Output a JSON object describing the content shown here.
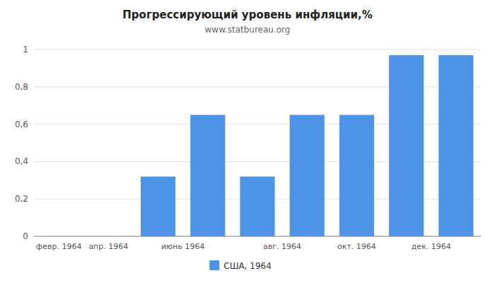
{
  "chart_data": {
    "type": "bar",
    "title": "Прогрессирующий уровень инфляции,%",
    "subtitle": "www.statbureau.org",
    "categories": [
      "февр. 1964",
      "апр. 1964",
      "июнь 1964",
      null,
      "авг. 1964",
      null,
      "окт. 1964",
      "дек. 1964",
      null
    ],
    "series": [
      {
        "name": "США, 1964",
        "color": "#4d94e8",
        "values": [
          0.0,
          0.0,
          0.32,
          0.65,
          0.32,
          0.65,
          0.65,
          0.97,
          0.97
        ]
      }
    ],
    "ylim": [
      0,
      1.0
    ],
    "yticks": [
      0,
      {
        "value": 0.2,
        "label": "0,2"
      },
      {
        "value": 0.4,
        "label": "0,4"
      },
      {
        "value": 0.6,
        "label": "0,6"
      },
      {
        "value": 0.8,
        "label": "0,8"
      },
      1
    ],
    "grid": true,
    "legend": "bottom"
  }
}
